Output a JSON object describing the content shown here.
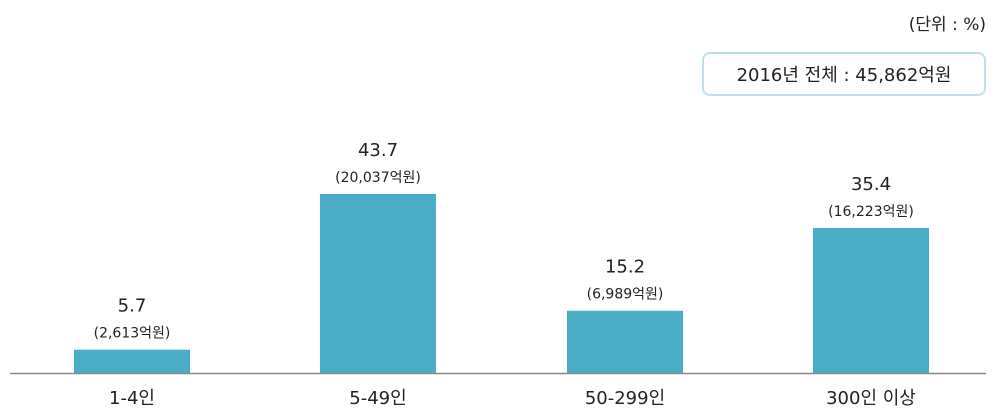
{
  "unit_label": "(단위 : %)",
  "total_label": "2016년 전체 : 45,862억원",
  "colors": {
    "bar": "#4bacc6",
    "axis": "#888888",
    "box_border": "#bfe0ea"
  },
  "chart_data": {
    "type": "bar",
    "categories": [
      "1-4인",
      "5-49인",
      "50-299인",
      "300인 이상"
    ],
    "values": [
      5.7,
      43.7,
      15.2,
      35.4
    ],
    "value_labels": [
      "5.7",
      "43.7",
      "15.2",
      "35.4"
    ],
    "amount_labels": [
      "(2,613억원)",
      "(20,037억원)",
      "(6,989억원)",
      "(16,223억원)"
    ],
    "title": "",
    "xlabel": "",
    "ylabel": "",
    "unit": "(단위 : %)",
    "ylim": [
      0,
      43.7
    ],
    "grid": false,
    "legend": "none"
  }
}
